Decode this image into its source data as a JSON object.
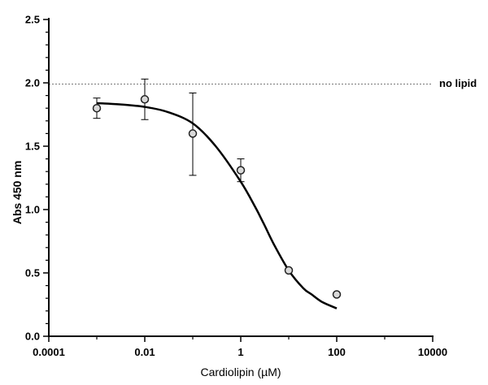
{
  "chart_data": {
    "type": "scatter",
    "title": "",
    "xlabel": "Cardiolipin (µM)",
    "ylabel": "Abs 450 nm",
    "x_scale": "log",
    "xlim": [
      0.0001,
      10000
    ],
    "ylim": [
      0,
      2.5
    ],
    "x_ticks": [
      0.0001,
      0.01,
      1,
      100,
      10000
    ],
    "x_tick_labels": [
      "0.0001",
      "0.01",
      "1",
      "100",
      "10000"
    ],
    "y_ticks": [
      0.0,
      0.5,
      1.0,
      1.5,
      2.0,
      2.5
    ],
    "y_tick_labels": [
      "0.0",
      "0.5",
      "1.0",
      "1.5",
      "2.0",
      "2.5"
    ],
    "grid": false,
    "series": [
      {
        "x": [
          0.001,
          0.01,
          0.1,
          1,
          10,
          100
        ],
        "y": [
          1.8,
          1.87,
          1.6,
          1.31,
          0.52,
          0.33
        ],
        "y_err_low": [
          1.72,
          1.71,
          1.27,
          1.22,
          null,
          null
        ],
        "y_err_high": [
          1.88,
          2.03,
          1.92,
          1.4,
          null,
          null
        ]
      }
    ],
    "fit_curve": {
      "x": [
        0.001,
        0.003,
        0.01,
        0.03,
        0.1,
        0.3,
        1,
        2,
        3,
        5,
        10,
        20,
        30,
        50,
        100
      ],
      "y": [
        1.84,
        1.83,
        1.81,
        1.77,
        1.68,
        1.5,
        1.22,
        1.02,
        0.89,
        0.72,
        0.52,
        0.38,
        0.33,
        0.27,
        0.22
      ]
    },
    "reference_line": {
      "y": 1.99,
      "label": "no lipid"
    }
  }
}
